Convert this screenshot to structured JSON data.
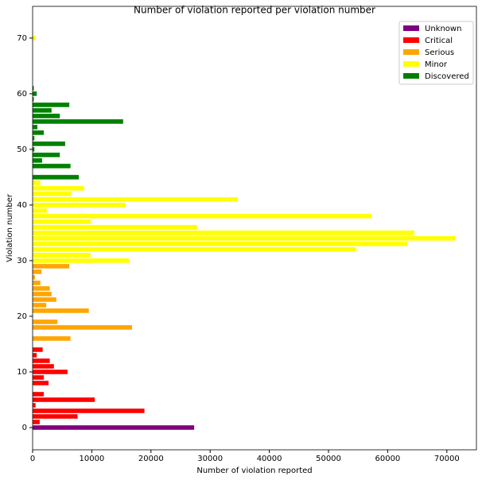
{
  "chart_data": {
    "type": "barh",
    "title": "Number of violation reported per violation number",
    "xlabel": "Number of violation reported",
    "ylabel": "Violation number",
    "xlim": [
      0,
      75000
    ],
    "xticks": [
      0,
      10000,
      20000,
      30000,
      40000,
      50000,
      60000,
      70000
    ],
    "ylim": [
      -4,
      75.7
    ],
    "yticks": [
      0,
      10,
      20,
      30,
      40,
      50,
      60,
      70
    ],
    "legend": "upper right",
    "series": [
      {
        "name": "Unknown",
        "color": "purple",
        "y": [
          0
        ],
        "values": [
          27300
        ]
      },
      {
        "name": "Critical",
        "color": "red",
        "y": [
          1,
          2,
          3,
          4,
          5,
          6,
          8,
          9,
          10,
          11,
          12,
          13,
          14
        ],
        "values": [
          1200,
          7600,
          18900,
          500,
          10500,
          1900,
          2700,
          1900,
          5900,
          3600,
          2900,
          700,
          1700
        ]
      },
      {
        "name": "Serious",
        "color": "orange",
        "y": [
          16,
          18,
          19,
          21,
          22,
          23,
          24,
          25,
          26,
          27,
          28,
          29
        ],
        "values": [
          6400,
          16800,
          4200,
          9500,
          2300,
          4000,
          3200,
          2900,
          1300,
          400,
          1500,
          6200
        ]
      },
      {
        "name": "Minor",
        "color": "yellow",
        "y": [
          30,
          31,
          32,
          33,
          34,
          35,
          36,
          37,
          38,
          39,
          40,
          41,
          42,
          43,
          44,
          70
        ],
        "values": [
          16300,
          9800,
          54700,
          63300,
          71400,
          64500,
          27800,
          9800,
          57300,
          2400,
          15700,
          34700,
          6500,
          8700,
          1300,
          500
        ]
      },
      {
        "name": "Discovered",
        "color": "green",
        "y": [
          45,
          47,
          48,
          49,
          50,
          51,
          52,
          53,
          54,
          55,
          56,
          57,
          58,
          59,
          60,
          61
        ],
        "values": [
          7800,
          6400,
          1600,
          4600,
          300,
          5500,
          300,
          1900,
          800,
          15300,
          4600,
          3200,
          6200,
          200,
          700,
          200
        ]
      }
    ]
  }
}
